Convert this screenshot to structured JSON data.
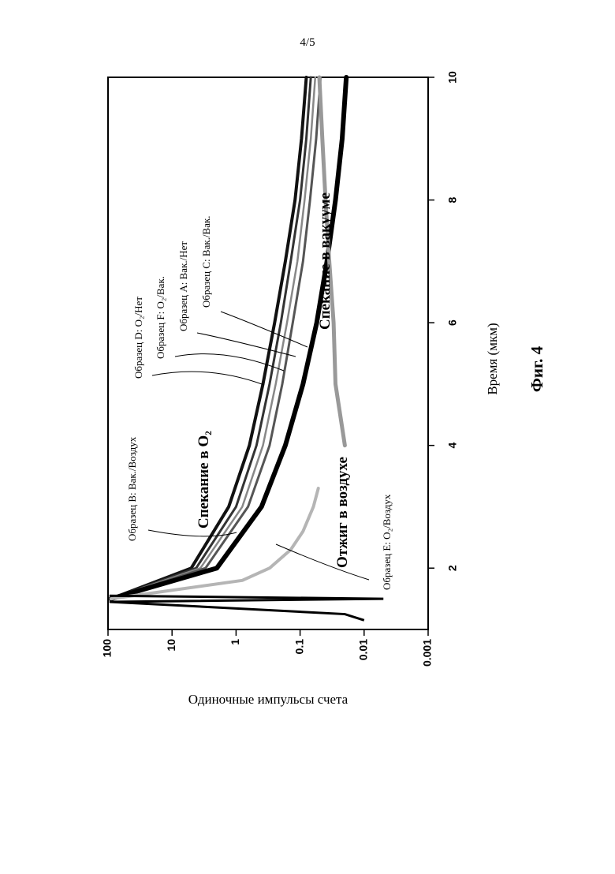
{
  "page": {
    "number": "4/5"
  },
  "figure": {
    "caption": "Фиг. 4"
  },
  "chart_data": {
    "type": "line",
    "xlabel": "Время (мкм)",
    "ylabel": "Одиночные импульсы счета",
    "xlim": [
      1,
      10
    ],
    "ylim": [
      0.001,
      100
    ],
    "yscale": "log",
    "grid": false,
    "x_ticks": [
      "2",
      "4",
      "6",
      "8",
      "10"
    ],
    "y_ticks": [
      "100",
      "10",
      "1",
      "0.1",
      "0.01",
      "0.001"
    ],
    "annotations": [
      "Спекание в O₂",
      "Спекание в вакууме",
      "Отжиг в воздухе"
    ],
    "series": [
      {
        "name": "Образец D: O₂/Нет",
        "color": "#111111",
        "x": [
          1.5,
          2,
          3,
          4,
          5,
          6,
          7,
          8,
          9,
          10
        ],
        "y": [
          90,
          5,
          1.3,
          0.62,
          0.38,
          0.25,
          0.17,
          0.12,
          0.095,
          0.08
        ]
      },
      {
        "name": "Образец F: O₂/Вак.",
        "color": "#333333",
        "x": [
          1.5,
          2,
          3,
          4,
          5,
          6,
          7,
          8,
          9,
          10
        ],
        "y": [
          90,
          4.2,
          1.0,
          0.48,
          0.3,
          0.2,
          0.14,
          0.1,
          0.08,
          0.068
        ]
      },
      {
        "name": "Образец A: Вак./Нет",
        "color": "#888888",
        "x": [
          1.5,
          2,
          3,
          4,
          5,
          6,
          7,
          8,
          9,
          10
        ],
        "y": [
          90,
          3.6,
          0.8,
          0.38,
          0.24,
          0.16,
          0.11,
          0.085,
          0.068,
          0.058
        ]
      },
      {
        "name": "Образец C: Вак./Вак.",
        "color": "#555555",
        "x": [
          1.5,
          2,
          3,
          4,
          5,
          6,
          7,
          8,
          9,
          10
        ],
        "y": [
          90,
          3.0,
          0.65,
          0.3,
          0.19,
          0.13,
          0.09,
          0.07,
          0.056,
          0.048
        ]
      },
      {
        "name": "Образец B: Вак./Воздух",
        "color": "#000000",
        "x": [
          1.5,
          2,
          3,
          4,
          5,
          6,
          7,
          8,
          9,
          10
        ],
        "y": [
          90,
          2.0,
          0.4,
          0.17,
          0.09,
          0.055,
          0.038,
          0.028,
          0.022,
          0.019
        ]
      },
      {
        "name": "Образец E: O₂/Воздух",
        "color": "#b5b5b5",
        "x": [
          1.5,
          1.8,
          2,
          2.3,
          2.6,
          3.0,
          3.3
        ],
        "y": [
          90,
          0.8,
          0.3,
          0.14,
          0.09,
          0.062,
          0.052
        ]
      },
      {
        "name": "",
        "color": "#999999",
        "x": [
          4,
          5,
          6,
          7,
          8,
          9,
          10
        ],
        "y": [
          0.02,
          0.028,
          0.03,
          0.035,
          0.04,
          0.045,
          0.05
        ]
      }
    ]
  }
}
